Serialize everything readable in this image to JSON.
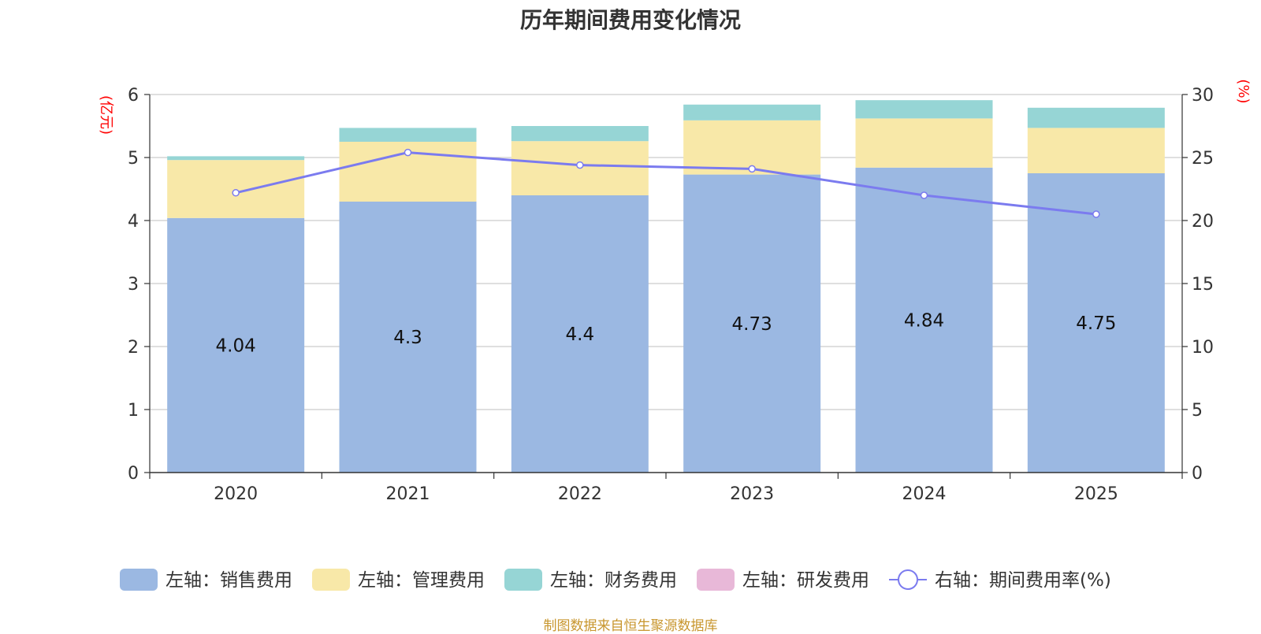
{
  "chart_data": {
    "type": "bar",
    "stacked": true,
    "title": "历年期间费用变化情况",
    "source": "制图数据来自恒生聚源数据库",
    "categories": [
      "2020",
      "2021",
      "2022",
      "2023",
      "2024",
      "2025"
    ],
    "left_axis": {
      "unit": "(亿元)",
      "min": 0,
      "max": 6,
      "ticks": [
        0,
        1,
        2,
        3,
        4,
        5,
        6
      ]
    },
    "right_axis": {
      "unit": "(%)",
      "min": 0,
      "max": 30,
      "ticks": [
        0,
        5,
        10,
        15,
        20,
        25,
        30
      ]
    },
    "series": [
      {
        "name": "左轴：销售费用",
        "axis": "left",
        "type": "bar",
        "color": "#9bb8e2",
        "values": [
          4.04,
          4.3,
          4.4,
          4.73,
          4.84,
          4.75
        ],
        "show_labels": true
      },
      {
        "name": "左轴：管理费用",
        "axis": "left",
        "type": "bar",
        "color": "#f8e8a8",
        "values": [
          0.92,
          0.95,
          0.86,
          0.86,
          0.78,
          0.72
        ]
      },
      {
        "name": "左轴：财务费用",
        "axis": "left",
        "type": "bar",
        "color": "#96d5d5",
        "values": [
          0.06,
          0.22,
          0.24,
          0.25,
          0.29,
          0.32
        ]
      },
      {
        "name": "左轴：研发费用",
        "axis": "left",
        "type": "bar",
        "color": "#e8b8d8",
        "values": [
          0,
          0,
          0,
          0,
          0,
          0
        ]
      },
      {
        "name": "右轴：期间费用率(%)",
        "axis": "right",
        "type": "line",
        "color": "#7b7bef",
        "values": [
          22.2,
          25.4,
          24.4,
          24.1,
          22.0,
          20.5
        ]
      }
    ],
    "legend_position": "bottom",
    "grid": true
  }
}
